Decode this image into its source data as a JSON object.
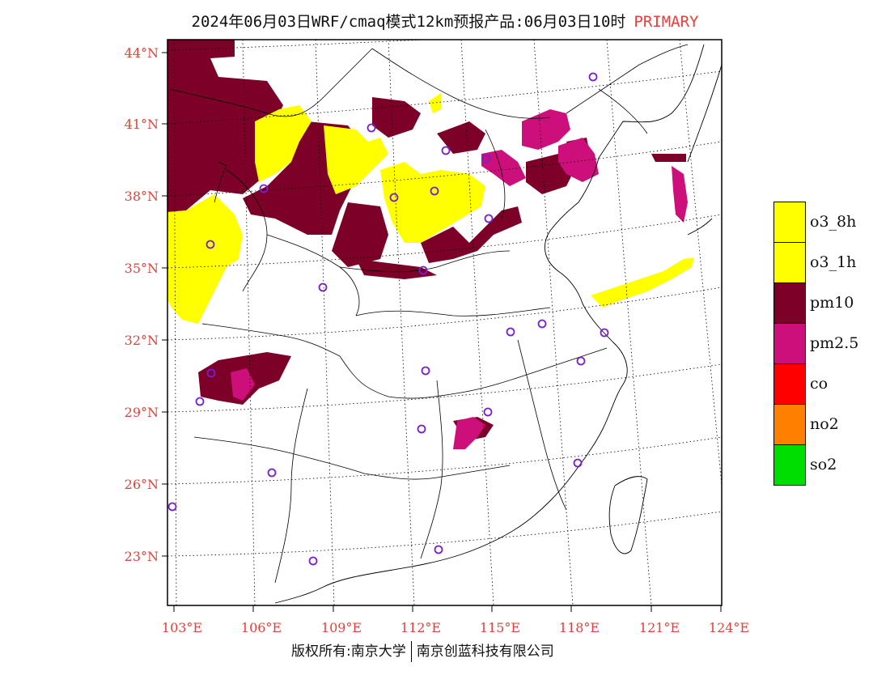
{
  "header": {
    "title": "2024年06月03日WRF/cmaq模式12km预报产品:06月03日10时",
    "tag": "PRIMARY"
  },
  "map": {
    "lat_labels": [
      "44°N",
      "41°N",
      "38°N",
      "35°N",
      "32°N",
      "29°N",
      "26°N",
      "23°N"
    ],
    "lon_labels": [
      "103°E",
      "106°E",
      "109°E",
      "112°E",
      "115°E",
      "118°E",
      "121°E",
      "124°E"
    ],
    "colors": {
      "o3_8h": "#ffff00",
      "o3_1h": "#ffff00",
      "pm10": "#7d0029",
      "pm2_5": "#cc0f7a",
      "co": "#ff0000",
      "no2": "#ff7f00",
      "so2": "#00dd00",
      "station": "#7a1fd0"
    }
  },
  "legend": [
    {
      "label": "o3_8h",
      "color": "#ffff00"
    },
    {
      "label": "o3_1h",
      "color": "#ffff00"
    },
    {
      "label": "pm10",
      "color": "#7d0029"
    },
    {
      "label": "pm2.5",
      "color": "#cc0f7a"
    },
    {
      "label": "co",
      "color": "#ff0000"
    },
    {
      "label": "no2",
      "color": "#ff7f00"
    },
    {
      "label": "so2",
      "color": "#00dd00"
    }
  ],
  "footer": {
    "left": "版权所有:南京大学",
    "right": "南京创蓝科技有限公司"
  }
}
